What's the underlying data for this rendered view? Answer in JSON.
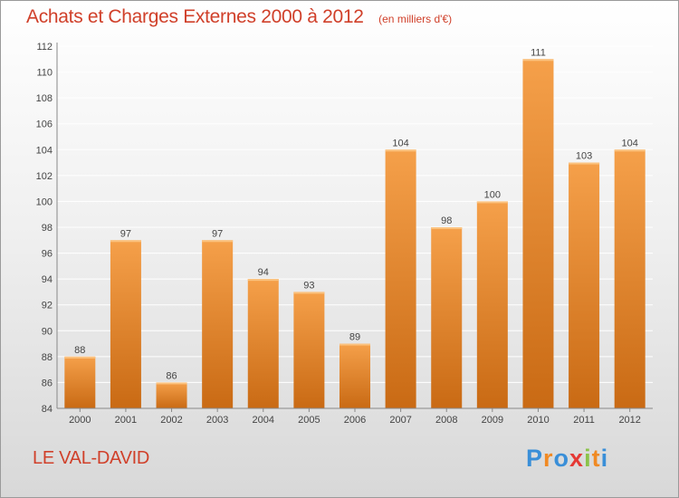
{
  "chart_data": {
    "type": "bar",
    "title": "Achats et Charges Externes 2000 à 2012",
    "subtitle": "(en milliers d'€)",
    "categories": [
      "2000",
      "2001",
      "2002",
      "2003",
      "2004",
      "2005",
      "2006",
      "2007",
      "2008",
      "2009",
      "2010",
      "2011",
      "2012"
    ],
    "values": [
      88,
      97,
      86,
      97,
      94,
      93,
      89,
      104,
      98,
      100,
      111,
      103,
      104
    ],
    "ylim": [
      84,
      112
    ],
    "yticks": [
      84,
      86,
      88,
      90,
      92,
      94,
      96,
      98,
      100,
      102,
      104,
      106,
      108,
      110,
      112
    ],
    "grid": true,
    "bar_color": "#f5a04a",
    "bar_color_dark": "#c96a14"
  },
  "footer": {
    "place": "LE VAL-DAVID",
    "logo_letters": [
      "P",
      "r",
      "o",
      "x",
      "i",
      "t",
      "i"
    ],
    "logo_colors": [
      "#3a8fd8",
      "#f08a24",
      "#3a8fd8",
      "#e53935",
      "#8bc34a",
      "#f08a24",
      "#3a8fd8"
    ]
  }
}
